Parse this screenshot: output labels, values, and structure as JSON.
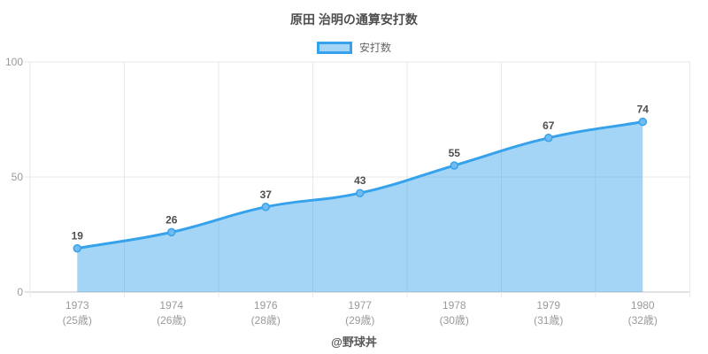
{
  "chart": {
    "title": "原田 治明の通算安打数",
    "legend": {
      "label": "安打数"
    },
    "footer": "@野球丼",
    "colors": {
      "line": "#36a2eb",
      "area_fill": "rgba(54,162,235,0.45)",
      "point_fill": "#72bbf0",
      "point_stroke": "#36a2eb",
      "grid": "#e8e8e8",
      "axis_line": "#c4c4c4",
      "tick_text": "#9a9a9a",
      "value_text": "#4f4f4f",
      "legend_swatch_fill": "#a5d5f6",
      "legend_swatch_border": "#36a2eb"
    }
  },
  "chart_data": {
    "type": "area",
    "title": "原田 治明の通算安打数",
    "series_name": "安打数",
    "categories": [
      {
        "year": "1973",
        "age": "(25歳)"
      },
      {
        "year": "1974",
        "age": "(26歳)"
      },
      {
        "year": "1976",
        "age": "(28歳)"
      },
      {
        "year": "1977",
        "age": "(29歳)"
      },
      {
        "year": "1978",
        "age": "(30歳)"
      },
      {
        "year": "1979",
        "age": "(31歳)"
      },
      {
        "year": "1980",
        "age": "(32歳)"
      }
    ],
    "values": [
      19,
      26,
      37,
      43,
      55,
      67,
      74
    ],
    "value_labels": [
      "19",
      "26",
      "37",
      "43",
      "55",
      "67",
      "74"
    ],
    "ylim": [
      0,
      100
    ],
    "yticks": [
      0,
      50,
      100
    ],
    "xlabel": "",
    "ylabel": "",
    "grid": true,
    "legend_position": "top",
    "line_tension": 0.4,
    "footer": "@野球丼"
  }
}
